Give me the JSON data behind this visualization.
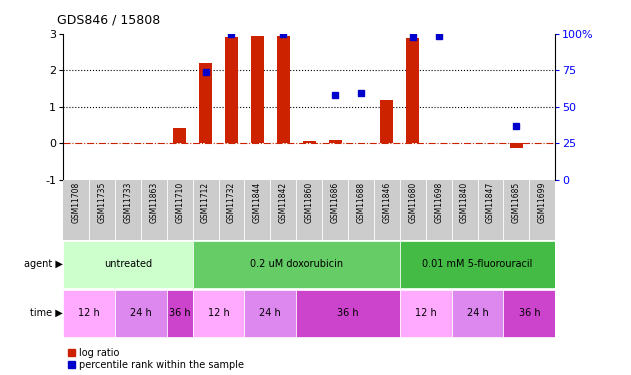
{
  "title": "GDS846 / 15808",
  "samples": [
    "GSM11708",
    "GSM11735",
    "GSM11733",
    "GSM11863",
    "GSM11710",
    "GSM11712",
    "GSM11732",
    "GSM11844",
    "GSM11842",
    "GSM11860",
    "GSM11686",
    "GSM11688",
    "GSM11846",
    "GSM11680",
    "GSM11698",
    "GSM11840",
    "GSM11847",
    "GSM11685",
    "GSM11699"
  ],
  "log_ratio": [
    0,
    0,
    0,
    0,
    0.42,
    2.2,
    2.9,
    2.95,
    2.95,
    0.08,
    0.09,
    0,
    1.2,
    2.88,
    0,
    0,
    0,
    -0.12,
    0
  ],
  "percentile_rank": [
    null,
    null,
    null,
    null,
    null,
    1.95,
    2.98,
    null,
    2.98,
    null,
    1.32,
    1.38,
    null,
    2.92,
    2.95,
    null,
    null,
    0.48,
    null
  ],
  "agent_groups": [
    {
      "label": "untreated",
      "start": 0,
      "end": 5,
      "color": "#ccffcc"
    },
    {
      "label": "0.2 uM doxorubicin",
      "start": 5,
      "end": 13,
      "color": "#66cc66"
    },
    {
      "label": "0.01 mM 5-fluorouracil",
      "start": 13,
      "end": 19,
      "color": "#44bb44"
    }
  ],
  "time_groups": [
    {
      "label": "12 h",
      "start": 0,
      "end": 2,
      "color": "#ffaaff"
    },
    {
      "label": "24 h",
      "start": 2,
      "end": 4,
      "color": "#dd88ee"
    },
    {
      "label": "36 h",
      "start": 4,
      "end": 5,
      "color": "#cc44cc"
    },
    {
      "label": "12 h",
      "start": 5,
      "end": 7,
      "color": "#ffaaff"
    },
    {
      "label": "24 h",
      "start": 7,
      "end": 9,
      "color": "#dd88ee"
    },
    {
      "label": "36 h",
      "start": 9,
      "end": 13,
      "color": "#cc44cc"
    },
    {
      "label": "12 h",
      "start": 13,
      "end": 15,
      "color": "#ffaaff"
    },
    {
      "label": "24 h",
      "start": 15,
      "end": 17,
      "color": "#dd88ee"
    },
    {
      "label": "36 h",
      "start": 17,
      "end": 19,
      "color": "#cc44cc"
    }
  ],
  "ylim_left": [
    -1,
    3
  ],
  "ylim_right": [
    0,
    100
  ],
  "yticks_left": [
    -1,
    0,
    1,
    2,
    3
  ],
  "yticks_right": [
    0,
    25,
    50,
    75,
    100
  ],
  "bar_color_red": "#cc2200",
  "bar_color_blue": "#0000cc",
  "hline_color": "#cc2200",
  "sample_bg_color": "#cccccc",
  "legend_red_label": "log ratio",
  "legend_blue_label": "percentile rank within the sample",
  "bar_width": 0.5
}
